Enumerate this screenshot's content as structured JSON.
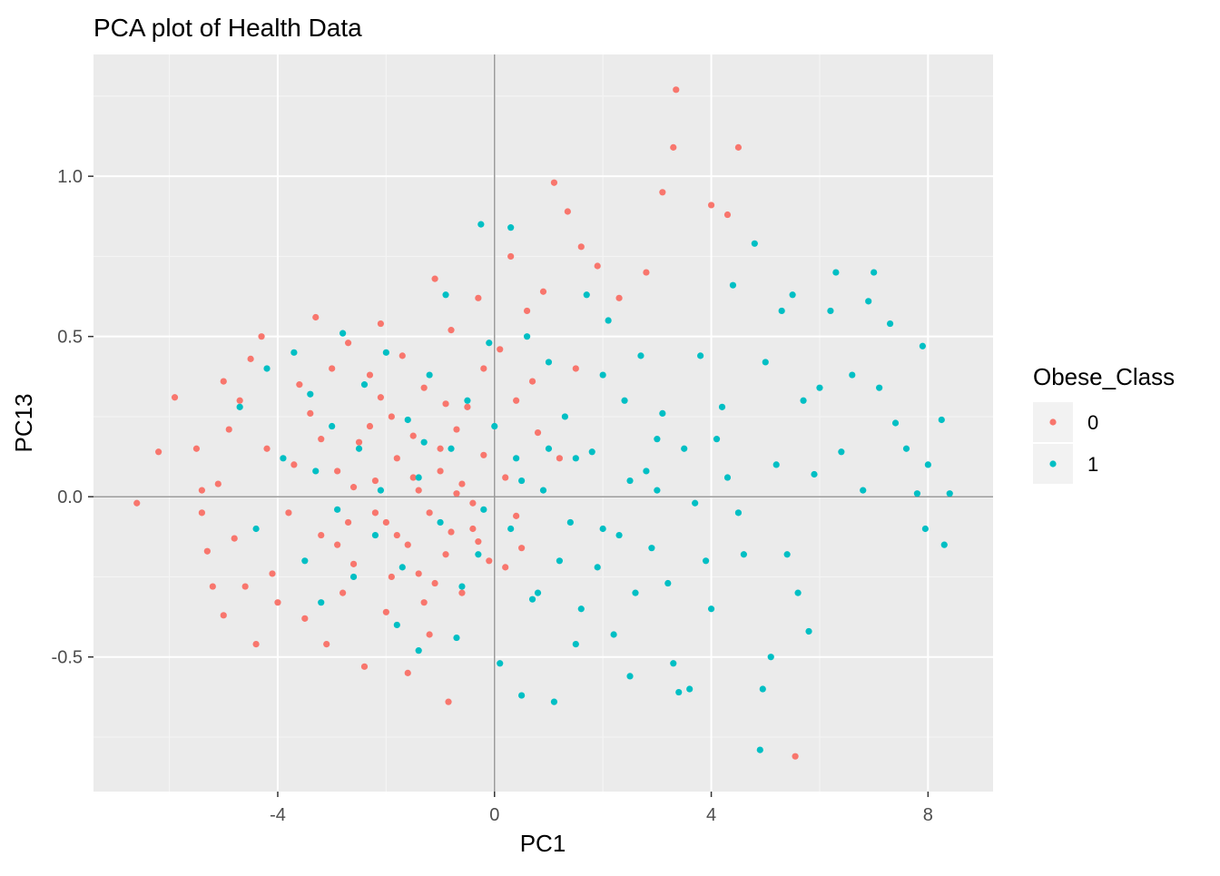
{
  "chart_data": {
    "type": "scatter",
    "title": "PCA plot of Health Data",
    "xlabel": "PC1",
    "ylabel": "PC13",
    "xlim": [
      -7.4,
      9.2
    ],
    "ylim": [
      -0.92,
      1.38
    ],
    "x_ticks": [
      -4,
      0,
      4,
      8
    ],
    "x_tick_labels": [
      "-4",
      "0",
      "4",
      "8"
    ],
    "y_ticks": [
      -0.5,
      0.0,
      0.5,
      1.0
    ],
    "y_tick_labels": [
      "-0.5",
      "0.0",
      "0.5",
      "1.0"
    ],
    "reference_lines": {
      "x": 0,
      "y": 0
    },
    "grid": true,
    "legend": {
      "title": "Obese_Class",
      "position": "right",
      "entries": [
        {
          "label": "0",
          "color": "#F8766D"
        },
        {
          "label": "1",
          "color": "#00BFC4"
        }
      ]
    },
    "colors": {
      "panel_bg": "#EBEBEB",
      "grid_major": "#FFFFFF",
      "grid_minor": "#F4F4F4",
      "reference_line": "#999999",
      "text": "#000000",
      "tick_text": "#4D4D4D"
    },
    "series": [
      {
        "name": "0",
        "color": "#F8766D",
        "points": [
          [
            -6.6,
            -0.02
          ],
          [
            -6.2,
            0.14
          ],
          [
            -5.9,
            0.31
          ],
          [
            -5.5,
            0.15
          ],
          [
            -5.4,
            -0.05
          ],
          [
            -5.4,
            0.02
          ],
          [
            -5.3,
            -0.17
          ],
          [
            -5.2,
            -0.28
          ],
          [
            -5.1,
            0.04
          ],
          [
            -5.0,
            -0.37
          ],
          [
            -5.0,
            0.36
          ],
          [
            -4.9,
            0.21
          ],
          [
            -4.8,
            -0.13
          ],
          [
            -4.7,
            0.3
          ],
          [
            -4.6,
            -0.28
          ],
          [
            -4.5,
            0.43
          ],
          [
            -4.4,
            -0.46
          ],
          [
            -4.3,
            0.5
          ],
          [
            -4.2,
            0.15
          ],
          [
            -4.1,
            -0.24
          ],
          [
            -3.7,
            0.1
          ],
          [
            -3.5,
            -0.38
          ],
          [
            -3.4,
            0.26
          ],
          [
            -3.3,
            0.56
          ],
          [
            -3.2,
            -0.12
          ],
          [
            -3.1,
            -0.46
          ],
          [
            -3.0,
            0.4
          ],
          [
            -2.9,
            0.08
          ],
          [
            -2.8,
            -0.3
          ],
          [
            -2.7,
            0.48
          ],
          [
            -2.6,
            -0.21
          ],
          [
            -2.5,
            0.17
          ],
          [
            -2.4,
            -0.53
          ],
          [
            -2.3,
            0.38
          ],
          [
            -2.2,
            -0.05
          ],
          [
            -2.1,
            0.54
          ],
          [
            -2.0,
            -0.36
          ],
          [
            -1.9,
            0.25
          ],
          [
            -1.8,
            -0.12
          ],
          [
            -1.7,
            0.44
          ],
          [
            -1.6,
            -0.55
          ],
          [
            -1.5,
            0.06
          ],
          [
            -1.4,
            -0.24
          ],
          [
            -1.3,
            0.34
          ],
          [
            -1.2,
            -0.43
          ],
          [
            -1.1,
            0.68
          ],
          [
            -1.0,
            0.15
          ],
          [
            -0.9,
            -0.18
          ],
          [
            -0.85,
            -0.64
          ],
          [
            -0.8,
            0.52
          ],
          [
            -0.7,
            0.01
          ],
          [
            -0.6,
            -0.3
          ],
          [
            -0.5,
            0.28
          ],
          [
            -0.4,
            -0.1
          ],
          [
            -0.3,
            0.62
          ],
          [
            -0.2,
            0.4
          ],
          [
            -0.1,
            -0.2
          ],
          [
            0.1,
            0.46
          ],
          [
            0.2,
            0.06
          ],
          [
            0.3,
            0.75
          ],
          [
            0.4,
            0.3
          ],
          [
            0.5,
            -0.16
          ],
          [
            0.6,
            0.58
          ],
          [
            0.7,
            0.36
          ],
          [
            0.9,
            0.64
          ],
          [
            1.1,
            0.98
          ],
          [
            1.2,
            0.12
          ],
          [
            1.35,
            0.89
          ],
          [
            1.5,
            0.4
          ],
          [
            1.6,
            0.78
          ],
          [
            1.9,
            0.72
          ],
          [
            2.3,
            0.62
          ],
          [
            2.8,
            0.7
          ],
          [
            3.1,
            0.95
          ],
          [
            3.3,
            1.09
          ],
          [
            3.35,
            1.27
          ],
          [
            4.0,
            0.91
          ],
          [
            4.3,
            0.88
          ],
          [
            4.5,
            1.09
          ],
          [
            5.55,
            -0.81
          ],
          [
            -2.2,
            0.05
          ],
          [
            -2.0,
            -0.08
          ],
          [
            -1.8,
            0.12
          ],
          [
            -1.6,
            -0.15
          ],
          [
            -1.4,
            0.02
          ],
          [
            -1.2,
            -0.05
          ],
          [
            -1.0,
            0.08
          ],
          [
            -0.8,
            -0.11
          ],
          [
            -0.6,
            0.04
          ],
          [
            -0.4,
            -0.02
          ],
          [
            -3.2,
            0.18
          ],
          [
            -2.9,
            -0.15
          ],
          [
            -2.6,
            0.03
          ],
          [
            -2.3,
            0.22
          ],
          [
            -1.9,
            -0.25
          ],
          [
            -1.5,
            0.19
          ],
          [
            -1.1,
            -0.27
          ],
          [
            -0.7,
            0.21
          ],
          [
            -0.3,
            -0.14
          ],
          [
            0.2,
            -0.22
          ],
          [
            -3.8,
            -0.05
          ],
          [
            -3.6,
            0.35
          ],
          [
            -4.0,
            -0.33
          ],
          [
            -2.7,
            -0.08
          ],
          [
            -2.1,
            0.31
          ],
          [
            -1.3,
            -0.33
          ],
          [
            -0.9,
            0.29
          ],
          [
            -0.2,
            0.13
          ],
          [
            0.4,
            -0.06
          ],
          [
            0.8,
            0.2
          ]
        ]
      },
      {
        "name": "1",
        "color": "#00BFC4",
        "points": [
          [
            -4.7,
            0.28
          ],
          [
            -4.4,
            -0.1
          ],
          [
            -4.2,
            0.4
          ],
          [
            -3.9,
            0.12
          ],
          [
            -3.7,
            0.45
          ],
          [
            -3.5,
            -0.2
          ],
          [
            -3.4,
            0.32
          ],
          [
            -3.2,
            -0.33
          ],
          [
            -3.0,
            0.22
          ],
          [
            -2.8,
            0.51
          ],
          [
            -2.6,
            -0.25
          ],
          [
            -2.4,
            0.35
          ],
          [
            -2.2,
            -0.12
          ],
          [
            -2.0,
            0.45
          ],
          [
            -1.8,
            -0.4
          ],
          [
            -1.6,
            0.24
          ],
          [
            -1.4,
            -0.48
          ],
          [
            -1.2,
            0.38
          ],
          [
            -1.0,
            -0.08
          ],
          [
            -0.9,
            0.63
          ],
          [
            -0.7,
            -0.44
          ],
          [
            -0.5,
            0.3
          ],
          [
            -0.3,
            -0.18
          ],
          [
            -0.25,
            0.85
          ],
          [
            -0.1,
            0.48
          ],
          [
            0.1,
            -0.52
          ],
          [
            0.3,
            0.84
          ],
          [
            0.4,
            0.12
          ],
          [
            0.5,
            -0.62
          ],
          [
            0.6,
            0.5
          ],
          [
            0.8,
            -0.3
          ],
          [
            1.0,
            0.42
          ],
          [
            1.1,
            -0.64
          ],
          [
            1.3,
            0.25
          ],
          [
            1.5,
            -0.46
          ],
          [
            1.7,
            0.63
          ],
          [
            1.9,
            -0.22
          ],
          [
            2.1,
            0.55
          ],
          [
            2.2,
            -0.43
          ],
          [
            2.4,
            0.3
          ],
          [
            2.5,
            -0.56
          ],
          [
            2.7,
            0.44
          ],
          [
            2.9,
            -0.16
          ],
          [
            3.1,
            0.26
          ],
          [
            3.3,
            -0.52
          ],
          [
            3.5,
            0.15
          ],
          [
            3.6,
            -0.6
          ],
          [
            3.8,
            0.44
          ],
          [
            4.0,
            -0.35
          ],
          [
            4.2,
            0.28
          ],
          [
            4.4,
            0.66
          ],
          [
            4.6,
            -0.18
          ],
          [
            4.8,
            0.79
          ],
          [
            4.9,
            -0.79
          ],
          [
            5.0,
            0.42
          ],
          [
            5.2,
            0.1
          ],
          [
            5.3,
            0.58
          ],
          [
            5.4,
            -0.18
          ],
          [
            5.5,
            0.63
          ],
          [
            5.6,
            -0.3
          ],
          [
            5.7,
            0.3
          ],
          [
            5.8,
            -0.42
          ],
          [
            5.9,
            0.07
          ],
          [
            6.0,
            0.34
          ],
          [
            6.2,
            0.58
          ],
          [
            6.3,
            0.7
          ],
          [
            6.4,
            0.14
          ],
          [
            6.6,
            0.38
          ],
          [
            6.8,
            0.02
          ],
          [
            6.9,
            0.61
          ],
          [
            7.0,
            0.7
          ],
          [
            7.1,
            0.34
          ],
          [
            7.3,
            0.54
          ],
          [
            7.4,
            0.23
          ],
          [
            7.6,
            0.15
          ],
          [
            7.8,
            0.01
          ],
          [
            7.9,
            0.47
          ],
          [
            7.95,
            -0.1
          ],
          [
            8.0,
            0.1
          ],
          [
            8.3,
            -0.15
          ],
          [
            8.4,
            0.01
          ],
          [
            8.25,
            0.24
          ],
          [
            4.95,
            -0.6
          ],
          [
            5.1,
            -0.5
          ],
          [
            3.4,
            -0.61
          ],
          [
            2.0,
            0.38
          ],
          [
            -1.4,
            0.06
          ],
          [
            -0.8,
            0.15
          ],
          [
            -0.2,
            -0.04
          ],
          [
            0.3,
            -0.1
          ],
          [
            0.9,
            0.02
          ],
          [
            1.4,
            -0.08
          ],
          [
            1.8,
            0.14
          ],
          [
            2.3,
            -0.12
          ],
          [
            2.8,
            0.08
          ],
          [
            3.2,
            -0.27
          ],
          [
            3.7,
            -0.02
          ],
          [
            4.1,
            0.18
          ],
          [
            4.5,
            -0.05
          ],
          [
            1.2,
            -0.2
          ],
          [
            -3.3,
            0.08
          ],
          [
            -2.9,
            -0.04
          ],
          [
            -2.5,
            0.15
          ],
          [
            -2.1,
            0.02
          ],
          [
            -1.7,
            -0.22
          ],
          [
            -1.3,
            0.17
          ],
          [
            -0.6,
            -0.28
          ],
          [
            0.0,
            0.22
          ],
          [
            0.7,
            -0.32
          ],
          [
            1.6,
            -0.35
          ],
          [
            2.6,
            -0.3
          ],
          [
            3.0,
            0.18
          ],
          [
            3.9,
            -0.2
          ],
          [
            4.3,
            0.06
          ],
          [
            1.0,
            0.15
          ],
          [
            2.0,
            -0.1
          ],
          [
            3.0,
            0.02
          ],
          [
            0.5,
            0.05
          ],
          [
            1.5,
            0.12
          ],
          [
            2.5,
            0.05
          ]
        ]
      }
    ]
  }
}
